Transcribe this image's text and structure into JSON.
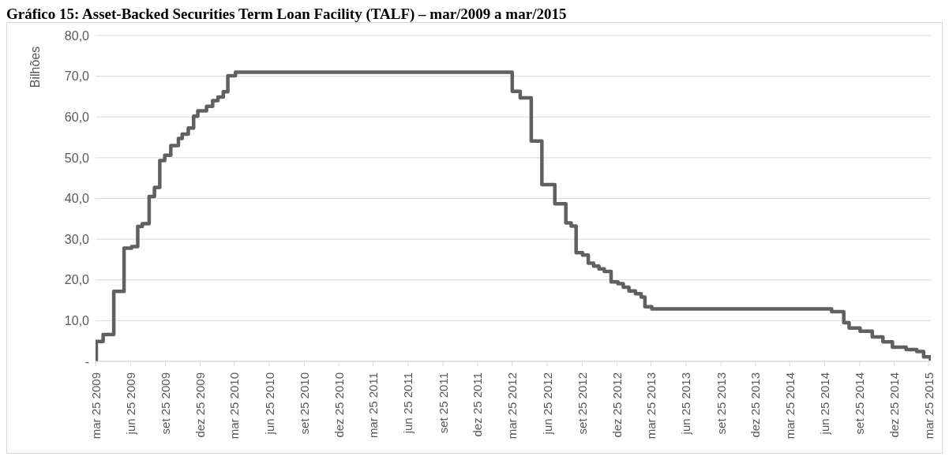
{
  "chart_data": {
    "type": "step",
    "title": "Gráfico 15: Asset-Backed Securities Term Loan Facility (TALF) – mar/2009 a mar/2015",
    "ylabel": "Bilhões",
    "x": [
      "2009-03-25",
      "2009-03-27",
      "2009-04-14",
      "2009-05-12",
      "2009-06-08",
      "2009-06-28",
      "2009-07-14",
      "2009-07-26",
      "2009-08-13",
      "2009-08-27",
      "2009-09-10",
      "2009-09-23",
      "2009-10-09",
      "2009-10-29",
      "2009-11-08",
      "2009-11-24",
      "2009-12-08",
      "2009-12-19",
      "2010-01-11",
      "2010-01-27",
      "2010-02-10",
      "2010-02-24",
      "2010-03-08",
      "2010-03-28",
      "2012-03-25",
      "2012-04-15",
      "2012-05-14",
      "2012-06-11",
      "2012-07-15",
      "2012-08-13",
      "2012-08-27",
      "2012-09-09",
      "2012-09-26",
      "2012-10-11",
      "2012-10-25",
      "2012-11-08",
      "2012-11-22",
      "2012-12-10",
      "2012-12-28",
      "2013-01-11",
      "2013-01-26",
      "2013-02-12",
      "2013-02-27",
      "2013-03-09",
      "2013-03-27",
      "2014-07-13",
      "2014-08-14",
      "2014-08-28",
      "2014-09-26",
      "2014-10-28",
      "2014-11-25",
      "2014-12-20",
      "2015-01-25",
      "2015-02-22",
      "2015-03-12",
      "2015-03-30"
    ],
    "series": [
      {
        "color": "#606060",
        "values": [
          0,
          4.9,
          6.6,
          17.2,
          27.8,
          28.2,
          33.1,
          33.8,
          40.5,
          42.7,
          49.3,
          50.6,
          53.0,
          54.7,
          55.8,
          57.3,
          60.2,
          61.5,
          62.6,
          64.0,
          64.9,
          66.2,
          70.1,
          71.0,
          66.3,
          64.7,
          54.1,
          43.4,
          38.7,
          34.0,
          33.2,
          26.7,
          26.1,
          24.1,
          23.4,
          22.7,
          22.1,
          19.5,
          19.1,
          18.2,
          17.3,
          16.6,
          15.8,
          13.4,
          12.9,
          12.2,
          9.5,
          8.2,
          7.4,
          6.0,
          4.8,
          3.5,
          2.9,
          2.4,
          1.1,
          0.2
        ]
      }
    ],
    "xlim": [
      "2009-03-25",
      "2015-03-31"
    ],
    "xticks": [
      {
        "value": "2009-03-25",
        "label": "mar 25 2009"
      },
      {
        "value": "2009-06-25",
        "label": "jun 25 2009"
      },
      {
        "value": "2009-09-25",
        "label": "set 25 2009"
      },
      {
        "value": "2009-12-25",
        "label": "dez 25 2009"
      },
      {
        "value": "2010-03-25",
        "label": "mar 25 2010"
      },
      {
        "value": "2010-06-25",
        "label": "jun 25 2010"
      },
      {
        "value": "2010-09-25",
        "label": "set 25 2010"
      },
      {
        "value": "2010-12-25",
        "label": "dez 25 2010"
      },
      {
        "value": "2011-03-25",
        "label": "mar 25 2011"
      },
      {
        "value": "2011-06-25",
        "label": "jun 25 2011"
      },
      {
        "value": "2011-09-25",
        "label": "set 25 2011"
      },
      {
        "value": "2011-12-25",
        "label": "dez 25 2011"
      },
      {
        "value": "2012-03-25",
        "label": "mar 25 2012"
      },
      {
        "value": "2012-06-25",
        "label": "jun 25 2012"
      },
      {
        "value": "2012-09-25",
        "label": "set 25 2012"
      },
      {
        "value": "2012-12-25",
        "label": "dez 25 2012"
      },
      {
        "value": "2013-03-25",
        "label": "mar 25 2013"
      },
      {
        "value": "2013-06-25",
        "label": "jun 25 2013"
      },
      {
        "value": "2013-09-25",
        "label": "set 25 2013"
      },
      {
        "value": "2013-12-25",
        "label": "dez 25 2013"
      },
      {
        "value": "2014-03-25",
        "label": "mar 25 2014"
      },
      {
        "value": "2014-06-25",
        "label": "jun 25 2014"
      },
      {
        "value": "2014-09-25",
        "label": "set 25 2014"
      },
      {
        "value": "2014-12-25",
        "label": "dez 25 2014"
      },
      {
        "value": "2015-03-25",
        "label": "mar 25 2015"
      }
    ],
    "ylim": [
      0,
      80
    ],
    "yticks": [
      {
        "value": 0,
        "label": "-"
      },
      {
        "value": 10,
        "label": "10,0"
      },
      {
        "value": 20,
        "label": "20,0"
      },
      {
        "value": 30,
        "label": "30,0"
      },
      {
        "value": 40,
        "label": "40,0"
      },
      {
        "value": 50,
        "label": "50,0"
      },
      {
        "value": 60,
        "label": "60,0"
      },
      {
        "value": 70,
        "label": "70,0"
      },
      {
        "value": 80,
        "label": "80,0"
      }
    ],
    "grid": "y",
    "legend": false,
    "marker": "none",
    "line_style": "solid"
  }
}
